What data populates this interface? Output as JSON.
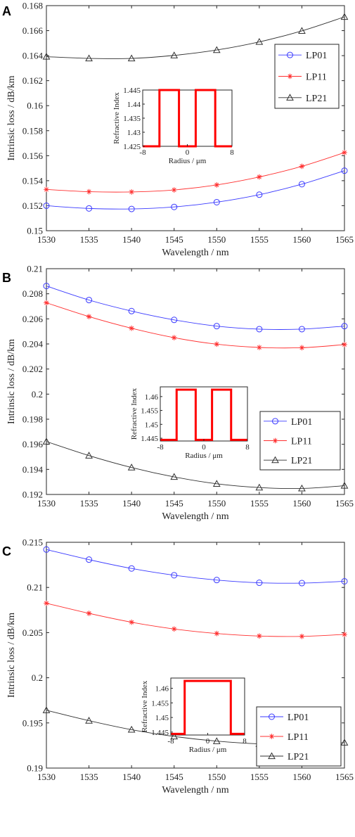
{
  "chart_data": [
    {
      "panel": "A",
      "type": "line",
      "xlabel": "Wavelength / nm",
      "ylabel": "Intrinsic loss / dB/km",
      "x": [
        1530,
        1535,
        1540,
        1545,
        1550,
        1555,
        1560,
        1565
      ],
      "xticks": [
        "1530",
        "1535",
        "1540",
        "1545",
        "1550",
        "1555",
        "1560",
        "1565"
      ],
      "xlim": [
        1530,
        1565
      ],
      "ylim": [
        0.15,
        0.168
      ],
      "yticks": [
        "0.15",
        "0.152",
        "0.154",
        "0.156",
        "0.158",
        "0.16",
        "0.162",
        "0.164",
        "0.166",
        "0.168"
      ],
      "legend_position": "right",
      "series": [
        {
          "name": "LP01",
          "color": "#3a3aff",
          "marker": "circle",
          "values": [
            0.152,
            0.15178,
            0.15174,
            0.1519,
            0.15228,
            0.15288,
            0.15372,
            0.1548
          ]
        },
        {
          "name": "LP11",
          "color": "#ff3030",
          "marker": "star",
          "values": [
            0.1533,
            0.15312,
            0.1531,
            0.15326,
            0.15366,
            0.1543,
            0.15515,
            0.15625
          ]
        },
        {
          "name": "LP21",
          "color": "#303030",
          "marker": "triangle",
          "values": [
            0.16392,
            0.16378,
            0.16378,
            0.16402,
            0.16445,
            0.1651,
            0.16598,
            0.1671
          ]
        }
      ],
      "inset": {
        "xlabel": "Radius / μm",
        "ylabel": "Refractive Index",
        "xticks": [
          "-8",
          "0",
          "8"
        ],
        "yticks": [
          "1.425",
          "1.43",
          "1.435",
          "1.44",
          "1.445"
        ],
        "xlim": [
          -8,
          8
        ],
        "ylim": [
          1.425,
          1.445
        ],
        "color": "#ff0000",
        "profile": [
          [
            -8,
            1.425
          ],
          [
            -5,
            1.425
          ],
          [
            -5,
            1.445
          ],
          [
            -1.5,
            1.445
          ],
          [
            -1.5,
            1.425
          ],
          [
            1.5,
            1.425
          ],
          [
            1.5,
            1.445
          ],
          [
            5,
            1.445
          ],
          [
            5,
            1.425
          ],
          [
            8,
            1.425
          ]
        ]
      }
    },
    {
      "panel": "B",
      "type": "line",
      "xlabel": "Wavelength / nm",
      "ylabel": "Intrinsic loss / dB/km",
      "x": [
        1530,
        1535,
        1540,
        1545,
        1550,
        1555,
        1560,
        1565
      ],
      "xticks": [
        "1530",
        "1535",
        "1540",
        "1545",
        "1550",
        "1555",
        "1560",
        "1565"
      ],
      "xlim": [
        1530,
        1565
      ],
      "ylim": [
        0.192,
        0.21
      ],
      "yticks": [
        "0.192",
        "0.194",
        "0.196",
        "0.198",
        "0.2",
        "0.202",
        "0.204",
        "0.206",
        "0.208",
        "0.21"
      ],
      "legend_position": "right",
      "series": [
        {
          "name": "LP01",
          "color": "#3a3aff",
          "marker": "circle",
          "values": [
            0.20862,
            0.2075,
            0.20662,
            0.20592,
            0.20542,
            0.20518,
            0.20518,
            0.20542
          ]
        },
        {
          "name": "LP11",
          "color": "#ff3030",
          "marker": "star",
          "values": [
            0.20728,
            0.20618,
            0.20525,
            0.2045,
            0.20398,
            0.20372,
            0.2037,
            0.20395
          ]
        },
        {
          "name": "LP21",
          "color": "#303030",
          "marker": "triangle",
          "values": [
            0.19622,
            0.1951,
            0.19415,
            0.1934,
            0.19285,
            0.19255,
            0.19248,
            0.1927
          ]
        }
      ],
      "inset": {
        "xlabel": "Radius / μm",
        "ylabel": "Refractive Index",
        "xticks": [
          "-8",
          "0",
          "8"
        ],
        "yticks": [
          "1.445",
          "1.45",
          "1.455",
          "1.46"
        ],
        "xlim": [
          -8,
          8
        ],
        "ylim": [
          1.444,
          1.4635
        ],
        "color": "#ff0000",
        "profile": [
          [
            -8,
            1.4444
          ],
          [
            -5,
            1.4444
          ],
          [
            -5,
            1.4625
          ],
          [
            -1.5,
            1.4625
          ],
          [
            -1.5,
            1.4444
          ],
          [
            1.5,
            1.4444
          ],
          [
            1.5,
            1.4625
          ],
          [
            5,
            1.4625
          ],
          [
            5,
            1.4444
          ],
          [
            8,
            1.4444
          ]
        ]
      }
    },
    {
      "panel": "C",
      "type": "line",
      "xlabel": "Wavelength / nm",
      "ylabel": "Intrinsic loss / dB/km",
      "x": [
        1530,
        1535,
        1540,
        1545,
        1550,
        1555,
        1560,
        1565
      ],
      "xticks": [
        "1530",
        "1535",
        "1540",
        "1545",
        "1550",
        "1555",
        "1560",
        "1565"
      ],
      "xlim": [
        1530,
        1565
      ],
      "ylim": [
        0.19,
        0.215
      ],
      "yticks": [
        "0.19",
        "0.195",
        "0.2",
        "0.205",
        "0.21",
        "0.215"
      ],
      "legend_position": "right",
      "series": [
        {
          "name": "LP01",
          "color": "#3a3aff",
          "marker": "circle",
          "values": [
            0.2142,
            0.21308,
            0.2121,
            0.21135,
            0.21082,
            0.21052,
            0.21048,
            0.21068
          ]
        },
        {
          "name": "LP11",
          "color": "#ff3030",
          "marker": "star",
          "values": [
            0.20825,
            0.20713,
            0.20615,
            0.2054,
            0.2049,
            0.20462,
            0.20458,
            0.2048
          ]
        },
        {
          "name": "LP21",
          "color": "#303030",
          "marker": "triangle",
          "values": [
            0.1964,
            0.19525,
            0.19425,
            0.1935,
            0.19298,
            0.19268,
            0.19262,
            0.19282
          ]
        }
      ],
      "inset": {
        "xlabel": "Radius / μm",
        "ylabel": "Refractive Index",
        "xticks": [
          "-8",
          "0",
          "8"
        ],
        "yticks": [
          "1.445",
          "1.45",
          "1.455",
          "1.46"
        ],
        "xlim": [
          -8,
          8
        ],
        "ylim": [
          1.444,
          1.4635
        ],
        "color": "#ff0000",
        "profile": [
          [
            -8,
            1.4444
          ],
          [
            -5,
            1.4444
          ],
          [
            -5,
            1.4625
          ],
          [
            5,
            1.4625
          ],
          [
            5,
            1.4444
          ],
          [
            8,
            1.4444
          ]
        ]
      }
    }
  ]
}
